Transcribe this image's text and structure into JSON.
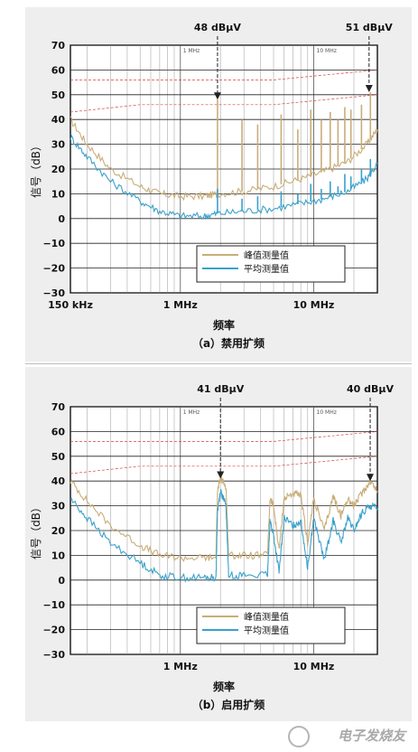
{
  "chart_data": [
    {
      "type": "line",
      "subtitle": "（a）禁用扩频",
      "ylabel": "信号（dB）",
      "xlabel": "频率",
      "x_scale": "log",
      "xlim_hz": [
        150000,
        30000000
      ],
      "ylim": [
        -30,
        70
      ],
      "y_ticks": [
        "70",
        "60",
        "50",
        "40",
        "30",
        "20",
        "10",
        "0",
        "−10",
        "−20",
        "−30"
      ],
      "x_tick_labels": [
        {
          "hz": 150000,
          "label": "150 kHz"
        },
        {
          "hz": 1000000,
          "label": "1 MHz"
        },
        {
          "hz": 10000000,
          "label": "10 MHz"
        }
      ],
      "inner_labels": [
        {
          "hz": 1000000,
          "label": "1 MHz"
        },
        {
          "hz": 10000000,
          "label": "10 MHz"
        }
      ],
      "annotations": [
        {
          "text": "48 dBμV",
          "hz": 1900000,
          "value": 48
        },
        {
          "text": "51 dBμV",
          "hz": 26000000,
          "value": 51
        }
      ],
      "legend": {
        "placement": "bottom-right",
        "entries": [
          "峰值测量值",
          "平均测量值"
        ]
      },
      "limit_lines": {
        "upper": [
          [
            150000,
            56
          ],
          [
            500000,
            56
          ],
          [
            5000000,
            56
          ],
          [
            30000000,
            60
          ]
        ],
        "lower": [
          [
            150000,
            43
          ],
          [
            500000,
            46
          ],
          [
            5000000,
            46
          ],
          [
            30000000,
            50
          ]
        ]
      },
      "series": [
        {
          "name": "峰值测量值",
          "color": "#c9ad78",
          "points": [
            [
              150000,
              40
            ],
            [
              200000,
              30
            ],
            [
              300000,
              20
            ],
            [
              500000,
              13
            ],
            [
              700000,
              10
            ],
            [
              1000000,
              9
            ],
            [
              1500000,
              9
            ],
            [
              1900000,
              10
            ],
            [
              3000000,
              11
            ],
            [
              5000000,
              13
            ],
            [
              8000000,
              16
            ],
            [
              12000000,
              19
            ],
            [
              18000000,
              23
            ],
            [
              25000000,
              30
            ],
            [
              30000000,
              36
            ]
          ],
          "spikes": [
            [
              1900000,
              48
            ],
            [
              2900000,
              40
            ],
            [
              3800000,
              38
            ],
            [
              5700000,
              42
            ],
            [
              7600000,
              36
            ],
            [
              9500000,
              44
            ],
            [
              11400000,
              40
            ],
            [
              13300000,
              43
            ],
            [
              15200000,
              40
            ],
            [
              17100000,
              45
            ],
            [
              19000000,
              44
            ],
            [
              22800000,
              46
            ],
            [
              26600000,
              51
            ]
          ]
        },
        {
          "name": "平均测量值",
          "color": "#3aa1cc",
          "points": [
            [
              150000,
              33
            ],
            [
              200000,
              25
            ],
            [
              300000,
              15
            ],
            [
              500000,
              7
            ],
            [
              700000,
              3
            ],
            [
              1000000,
              1
            ],
            [
              1500000,
              1
            ],
            [
              1900000,
              2
            ],
            [
              3000000,
              3
            ],
            [
              5000000,
              4
            ],
            [
              8000000,
              6
            ],
            [
              12000000,
              8
            ],
            [
              18000000,
              11
            ],
            [
              25000000,
              16
            ],
            [
              30000000,
              22
            ]
          ],
          "spikes": [
            [
              1900000,
              12
            ],
            [
              2900000,
              8
            ],
            [
              3800000,
              9
            ],
            [
              5700000,
              11
            ],
            [
              7600000,
              10
            ],
            [
              9500000,
              14
            ],
            [
              11400000,
              12
            ],
            [
              13300000,
              15
            ],
            [
              15200000,
              13
            ],
            [
              17100000,
              18
            ],
            [
              19000000,
              17
            ],
            [
              22800000,
              20
            ],
            [
              26600000,
              24
            ]
          ]
        }
      ]
    },
    {
      "type": "line",
      "subtitle": "（b）启用扩频",
      "ylabel": "信号（dB）",
      "xlabel": "频率",
      "x_scale": "log",
      "xlim_hz": [
        150000,
        30000000
      ],
      "ylim": [
        -30,
        70
      ],
      "y_ticks": [
        "70",
        "60",
        "50",
        "40",
        "30",
        "20",
        "10",
        "0",
        "−10",
        "−20",
        "−30"
      ],
      "x_tick_labels": [
        {
          "hz": 1000000,
          "label": "1 MHz"
        },
        {
          "hz": 10000000,
          "label": "10 MHz"
        }
      ],
      "inner_labels": [
        {
          "hz": 1000000,
          "label": "1 MHz"
        },
        {
          "hz": 10000000,
          "label": "10 MHz"
        }
      ],
      "annotations": [
        {
          "text": "41 dBμV",
          "hz": 2000000,
          "value": 41
        },
        {
          "text": "40 dBμV",
          "hz": 26500000,
          "value": 40
        }
      ],
      "legend": {
        "placement": "bottom-right",
        "entries": [
          "峰值测量值",
          "平均测量值"
        ]
      },
      "limit_lines": {
        "upper": [
          [
            150000,
            56
          ],
          [
            500000,
            56
          ],
          [
            5000000,
            56
          ],
          [
            30000000,
            60
          ]
        ],
        "lower": [
          [
            150000,
            43
          ],
          [
            500000,
            46
          ],
          [
            5000000,
            46
          ],
          [
            30000000,
            50
          ]
        ]
      },
      "series": [
        {
          "name": "峰值测量值",
          "color": "#c9ad78",
          "points": [
            [
              150000,
              40
            ],
            [
              200000,
              32
            ],
            [
              300000,
              22
            ],
            [
              500000,
              14
            ],
            [
              700000,
              10
            ],
            [
              1000000,
              9
            ],
            [
              1500000,
              9
            ],
            [
              1850000,
              9
            ],
            [
              1900000,
              36
            ],
            [
              2000000,
              41
            ],
            [
              2200000,
              38
            ],
            [
              2300000,
              10
            ],
            [
              3000000,
              10
            ],
            [
              4500000,
              10
            ],
            [
              4700000,
              33
            ],
            [
              5000000,
              30
            ],
            [
              5500000,
              12
            ],
            [
              6000000,
              33
            ],
            [
              7000000,
              35
            ],
            [
              8000000,
              34
            ],
            [
              9000000,
              15
            ],
            [
              10000000,
              33
            ],
            [
              12000000,
              20
            ],
            [
              14000000,
              34
            ],
            [
              16000000,
              26
            ],
            [
              18000000,
              33
            ],
            [
              20000000,
              30
            ],
            [
              23000000,
              35
            ],
            [
              26500000,
              40
            ],
            [
              30000000,
              36
            ]
          ],
          "spikes": []
        },
        {
          "name": "平均测量值",
          "color": "#3aa1cc",
          "points": [
            [
              150000,
              33
            ],
            [
              200000,
              25
            ],
            [
              300000,
              15
            ],
            [
              500000,
              7
            ],
            [
              700000,
              2
            ],
            [
              1000000,
              1
            ],
            [
              1500000,
              1
            ],
            [
              1850000,
              1
            ],
            [
              1900000,
              28
            ],
            [
              2000000,
              36
            ],
            [
              2200000,
              30
            ],
            [
              2300000,
              2
            ],
            [
              3000000,
              2
            ],
            [
              4500000,
              2
            ],
            [
              4700000,
              24
            ],
            [
              5000000,
              18
            ],
            [
              5500000,
              3
            ],
            [
              6000000,
              25
            ],
            [
              7000000,
              22
            ],
            [
              8000000,
              24
            ],
            [
              9000000,
              5
            ],
            [
              10000000,
              25
            ],
            [
              12000000,
              8
            ],
            [
              14000000,
              24
            ],
            [
              16000000,
              15
            ],
            [
              18000000,
              25
            ],
            [
              20000000,
              20
            ],
            [
              23000000,
              27
            ],
            [
              26500000,
              30
            ],
            [
              30000000,
              29
            ]
          ],
          "spikes": []
        }
      ]
    }
  ],
  "watermark": "电子发烧友"
}
